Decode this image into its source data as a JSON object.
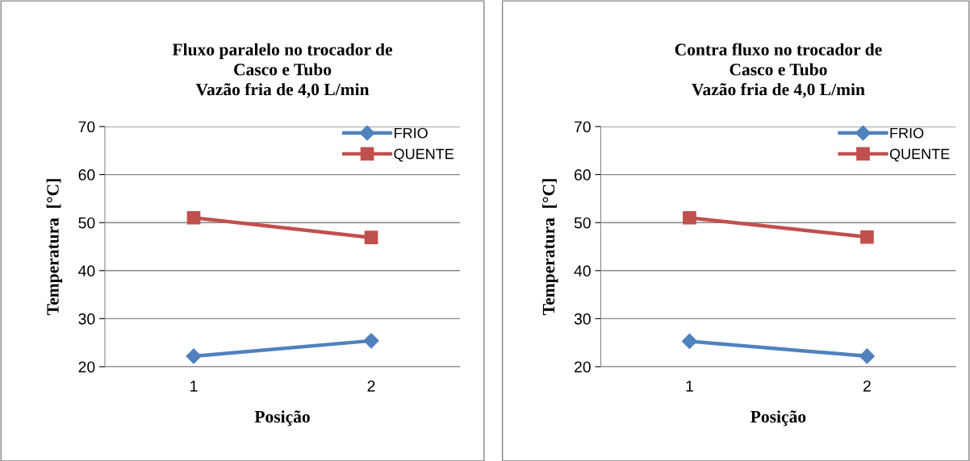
{
  "chart_data": [
    {
      "type": "line",
      "title": "Fluxo paralelo no trocador de\nCasco e Tubo\nVazão fria de 4,0 L/min",
      "xlabel": "Posição",
      "ylabel": "Temperatura  [°C]",
      "categories": [
        "1",
        "2"
      ],
      "series": [
        {
          "name": "FRIO",
          "color": "#4f81bd",
          "marker": "diamond",
          "values": [
            22.2,
            25.4
          ]
        },
        {
          "name": "QUENTE",
          "color": "#c0504d",
          "marker": "square",
          "values": [
            51.0,
            46.9
          ]
        }
      ],
      "ylim": [
        20,
        70
      ],
      "yticks": [
        20,
        30,
        40,
        50,
        60,
        70
      ],
      "grid": "y",
      "legend": "top right",
      "line_style": "solid"
    },
    {
      "type": "line",
      "title": "Contra fluxo no trocador de\nCasco e Tubo\nVazão fria de 4,0 L/min",
      "xlabel": "Posição",
      "ylabel": "Temperatura  [°C]",
      "categories": [
        "1",
        "2"
      ],
      "series": [
        {
          "name": "FRIO",
          "color": "#4f81bd",
          "marker": "diamond",
          "values": [
            25.3,
            22.2
          ]
        },
        {
          "name": "QUENTE",
          "color": "#c0504d",
          "marker": "square",
          "values": [
            51.0,
            47.0
          ]
        }
      ],
      "ylim": [
        20,
        70
      ],
      "yticks": [
        20,
        30,
        40,
        50,
        60,
        70
      ],
      "grid": "y",
      "legend": "top right",
      "line_style": "solid"
    }
  ]
}
